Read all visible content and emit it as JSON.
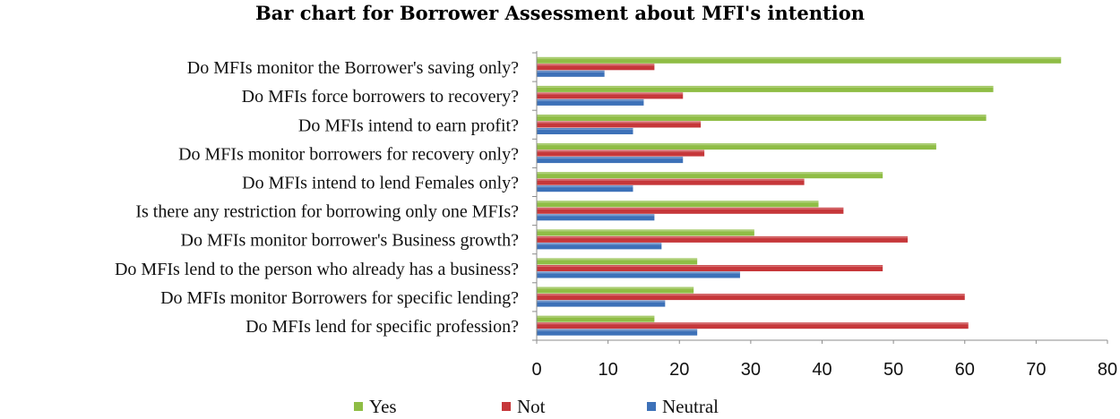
{
  "chart_data": {
    "type": "bar",
    "orientation": "horizontal",
    "title": "Bar chart for Borrower Assessment about MFI's intention",
    "xlabel": "",
    "ylabel": "",
    "xlim": [
      0,
      80
    ],
    "ticks": [
      0,
      10,
      20,
      30,
      40,
      50,
      60,
      70,
      80
    ],
    "tick_labels": [
      "0",
      "10",
      "20",
      "30",
      "40",
      "50",
      "60",
      "70",
      "80"
    ],
    "grid": false,
    "legend_position": "bottom",
    "categories": [
      "Do MFIs monitor the Borrower's saving only?",
      "Do MFIs force borrowers to recovery?",
      "Do MFIs intend to earn profit?",
      "Do MFIs monitor borrowers for recovery only?",
      "Do MFIs intend to lend Females only?",
      "Is there any restriction for borrowing only one MFIs?",
      "Do MFIs monitor borrower's Business growth?",
      "Do MFIs lend to the person who already has a business?",
      "Do MFIs monitor Borrowers for specific lending?",
      "Do MFIs lend for specific profession?"
    ],
    "series": [
      {
        "name": "Yes",
        "color": "#8fbd45",
        "values": [
          73.5,
          64,
          63,
          56,
          48.5,
          39.5,
          30.5,
          22.5,
          22,
          16.5
        ]
      },
      {
        "name": "Not",
        "color": "#c6373a",
        "values": [
          16.5,
          20.5,
          23,
          23.5,
          37.5,
          43,
          52,
          48.5,
          60,
          60.5
        ]
      },
      {
        "name": "Neutral",
        "color": "#3d71b8",
        "values": [
          9.5,
          15,
          13.5,
          20.5,
          13.5,
          16.5,
          17.5,
          28.5,
          18,
          22.5
        ]
      }
    ]
  }
}
